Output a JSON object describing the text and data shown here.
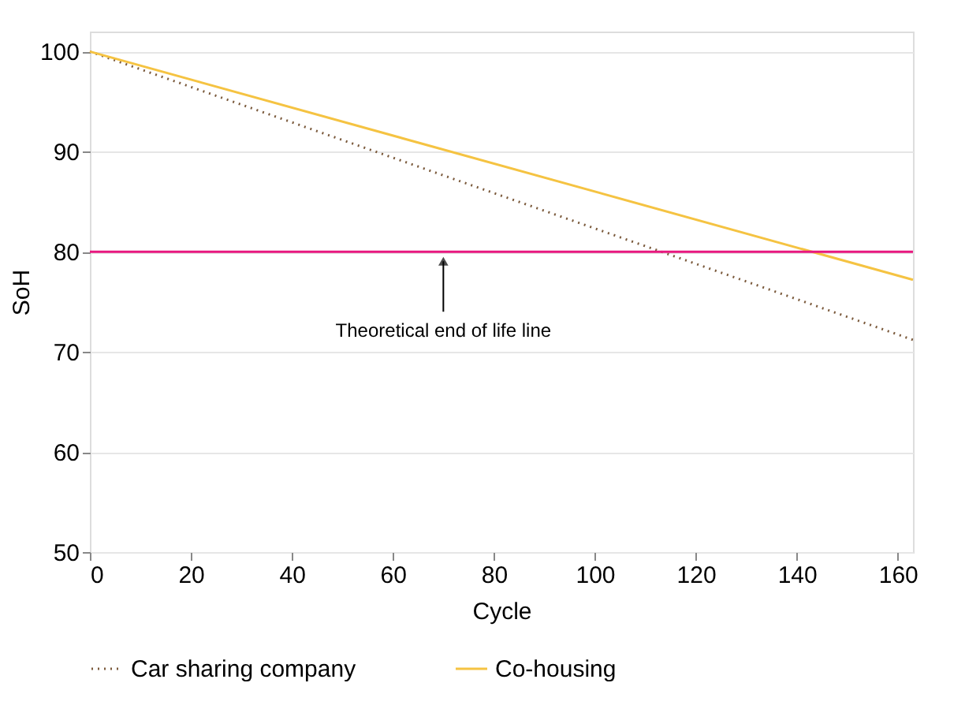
{
  "chart_data": {
    "type": "line",
    "xlabel": "Cycle",
    "ylabel": "SoH",
    "x": [
      0,
      163
    ],
    "series": [
      {
        "name": "Car sharing company",
        "color": "#7b5a3c",
        "values": [
          100,
          71.2
        ],
        "line_style": "dotted"
      },
      {
        "name": "Co-housing",
        "color": "#f5c342",
        "values": [
          100,
          77.2
        ],
        "line_style": "solid"
      }
    ],
    "xlim": [
      0,
      163
    ],
    "xticks": [
      0,
      20,
      40,
      60,
      80,
      100,
      120,
      140,
      160
    ],
    "ylim": [
      50,
      102
    ],
    "yticks": [
      50,
      60,
      70,
      80,
      90,
      100
    ],
    "grid": "y",
    "legend": "bottom",
    "marker": "none",
    "ref_lines": [
      {
        "axis": "y",
        "value": 80,
        "color": "#e8177f"
      }
    ],
    "annotations": [
      {
        "text": "Theoretical end of life line",
        "x": 70,
        "y": 80
      }
    ]
  }
}
